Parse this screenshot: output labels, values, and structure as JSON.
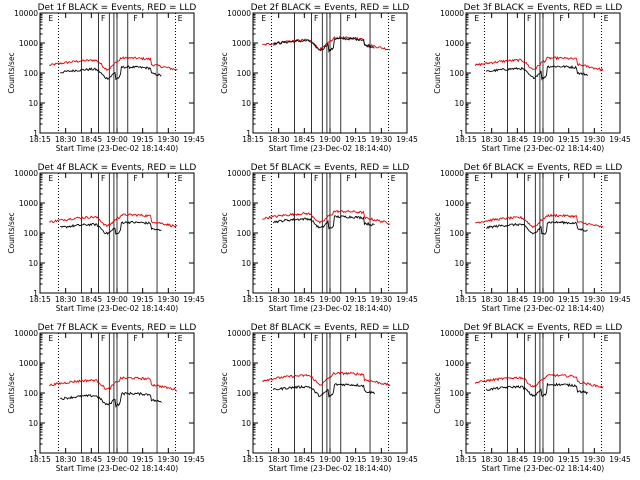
{
  "figure": {
    "colors": {
      "events": "#000000",
      "lld": "#e00000",
      "axes": "#000000",
      "background": "#ffffff"
    }
  },
  "chart_data": [
    {
      "type": "line",
      "title": "Det 1f BLACK = Events, RED = LLD",
      "xlabel": "Start Time (23-Dec-02 18:14:40)",
      "ylabel": "Counts/sec",
      "x_tick_labels": [
        "18:15",
        "18:30",
        "18:45",
        "19:00",
        "19:15",
        "19:30",
        "19:45"
      ],
      "y_tick_labels": [
        "1",
        "10",
        "100",
        "1000",
        "10000"
      ],
      "xlim_minutes": [
        0,
        36
      ],
      "ylim": [
        1,
        10000
      ],
      "y_scale": "log",
      "grid": false,
      "markers": [
        "E",
        "F",
        "F",
        "E"
      ],
      "series": [
        {
          "color": "#e00000",
          "shape": "lld",
          "level": 180
        },
        {
          "color": "#000000",
          "shape": "events",
          "level": 90
        }
      ]
    },
    {
      "type": "line",
      "title": "Det 2f BLACK = Events, RED = LLD",
      "xlabel": "Start Time (23-Dec-02 18:14:40)",
      "ylabel": "Counts/sec",
      "x_tick_labels": [
        "18:15",
        "18:30",
        "18:45",
        "19:00",
        "19:15",
        "19:30",
        "19:45"
      ],
      "y_tick_labels": [
        "1",
        "10",
        "100",
        "1000",
        "10000"
      ],
      "xlim_minutes": [
        0,
        36
      ],
      "ylim": [
        1,
        10000
      ],
      "y_scale": "log",
      "grid": false,
      "markers": [
        "E",
        "F",
        "F",
        "E"
      ],
      "series": [
        {
          "color": "#e00000",
          "shape": "lld",
          "level": 850
        },
        {
          "color": "#000000",
          "shape": "events",
          "level": 800
        }
      ]
    },
    {
      "type": "line",
      "title": "Det 3f BLACK = Events, RED = LLD",
      "xlabel": "Start Time (23-Dec-02 18:14:40)",
      "ylabel": "Counts/sec",
      "x_tick_labels": [
        "18:15",
        "18:30",
        "18:45",
        "19:00",
        "19:15",
        "19:30",
        "19:45"
      ],
      "y_tick_labels": [
        "1",
        "10",
        "100",
        "1000",
        "10000"
      ],
      "xlim_minutes": [
        0,
        36
      ],
      "ylim": [
        1,
        10000
      ],
      "y_scale": "log",
      "grid": false,
      "markers": [
        "E",
        "F",
        "F",
        "E"
      ],
      "series": [
        {
          "color": "#e00000",
          "shape": "lld",
          "level": 180
        },
        {
          "color": "#000000",
          "shape": "events",
          "level": 95
        }
      ]
    },
    {
      "type": "line",
      "title": "Det 4f BLACK = Events, RED = LLD",
      "xlabel": "Start Time (23-Dec-02 18:14:40)",
      "ylabel": "Counts/sec",
      "x_tick_labels": [
        "18:15",
        "18:30",
        "18:45",
        "19:00",
        "19:15",
        "19:30",
        "19:45"
      ],
      "y_tick_labels": [
        "1",
        "10",
        "100",
        "1000",
        "10000"
      ],
      "xlim_minutes": [
        0,
        36
      ],
      "ylim": [
        1,
        10000
      ],
      "y_scale": "log",
      "grid": false,
      "markers": [
        "E",
        "F",
        "F",
        "E"
      ],
      "series": [
        {
          "color": "#e00000",
          "shape": "lld",
          "level": 230
        },
        {
          "color": "#000000",
          "shape": "events",
          "level": 130
        }
      ]
    },
    {
      "type": "line",
      "title": "Det 5f BLACK = Events, RED = LLD",
      "xlabel": "Start Time (23-Dec-02 18:14:40)",
      "ylabel": "Counts/sec",
      "x_tick_labels": [
        "18:15",
        "18:30",
        "18:45",
        "19:00",
        "19:15",
        "19:30",
        "19:45"
      ],
      "y_tick_labels": [
        "1",
        "10",
        "100",
        "1000",
        "10000"
      ],
      "xlim_minutes": [
        0,
        36
      ],
      "ylim": [
        1,
        10000
      ],
      "y_scale": "log",
      "grid": false,
      "markers": [
        "E",
        "F",
        "F",
        "E"
      ],
      "series": [
        {
          "color": "#e00000",
          "shape": "lld",
          "level": 300
        },
        {
          "color": "#000000",
          "shape": "events",
          "level": 200
        }
      ]
    },
    {
      "type": "line",
      "title": "Det 6f BLACK = Events, RED = LLD",
      "xlabel": "Start Time (23-Dec-02 18:14:40)",
      "ylabel": "Counts/sec",
      "x_tick_labels": [
        "18:15",
        "18:30",
        "18:45",
        "19:00",
        "19:15",
        "19:30",
        "19:45"
      ],
      "y_tick_labels": [
        "1",
        "10",
        "100",
        "1000",
        "10000"
      ],
      "xlim_minutes": [
        0,
        36
      ],
      "ylim": [
        1,
        10000
      ],
      "y_scale": "log",
      "grid": false,
      "markers": [
        "E",
        "F",
        "F",
        "E"
      ],
      "series": [
        {
          "color": "#e00000",
          "shape": "lld",
          "level": 220
        },
        {
          "color": "#000000",
          "shape": "events",
          "level": 130
        }
      ]
    },
    {
      "type": "line",
      "title": "Det 7f BLACK = Events, RED = LLD",
      "xlabel": "Start Time (23-Dec-02 18:14:40)",
      "ylabel": "Counts/sec",
      "x_tick_labels": [
        "18:15",
        "18:30",
        "18:45",
        "19:00",
        "19:15",
        "19:30",
        "19:45"
      ],
      "y_tick_labels": [
        "1",
        "10",
        "100",
        "1000",
        "10000"
      ],
      "xlim_minutes": [
        0,
        36
      ],
      "ylim": [
        1,
        10000
      ],
      "y_scale": "log",
      "grid": false,
      "markers": [
        "E",
        "F",
        "F",
        "E"
      ],
      "series": [
        {
          "color": "#e00000",
          "shape": "lld",
          "level": 180
        },
        {
          "color": "#000000",
          "shape": "events",
          "level": 55
        }
      ]
    },
    {
      "type": "line",
      "title": "Det 8f BLACK = Events, RED = LLD",
      "xlabel": "Start Time (23-Dec-02 18:14:40)",
      "ylabel": "Counts/sec",
      "x_tick_labels": [
        "18:15",
        "18:30",
        "18:45",
        "19:00",
        "19:15",
        "19:30",
        "19:45"
      ],
      "y_tick_labels": [
        "1",
        "10",
        "100",
        "1000",
        "10000"
      ],
      "xlim_minutes": [
        0,
        36
      ],
      "ylim": [
        1,
        10000
      ],
      "y_scale": "log",
      "grid": false,
      "markers": [
        "E",
        "F",
        "F",
        "E"
      ],
      "series": [
        {
          "color": "#e00000",
          "shape": "lld",
          "level": 260
        },
        {
          "color": "#000000",
          "shape": "events",
          "level": 110
        }
      ]
    },
    {
      "type": "line",
      "title": "Det 9f BLACK = Events, RED = LLD",
      "xlabel": "Start Time (23-Dec-02 18:14:40)",
      "ylabel": "Counts/sec",
      "x_tick_labels": [
        "18:15",
        "18:30",
        "18:45",
        "19:00",
        "19:15",
        "19:30",
        "19:45"
      ],
      "y_tick_labels": [
        "1",
        "10",
        "100",
        "1000",
        "10000"
      ],
      "xlim_minutes": [
        0,
        36
      ],
      "ylim": [
        1,
        10000
      ],
      "y_scale": "log",
      "grid": false,
      "markers": [
        "E",
        "F",
        "F",
        "E"
      ],
      "series": [
        {
          "color": "#e00000",
          "shape": "lld",
          "level": 220
        },
        {
          "color": "#000000",
          "shape": "events",
          "level": 110
        }
      ]
    }
  ]
}
